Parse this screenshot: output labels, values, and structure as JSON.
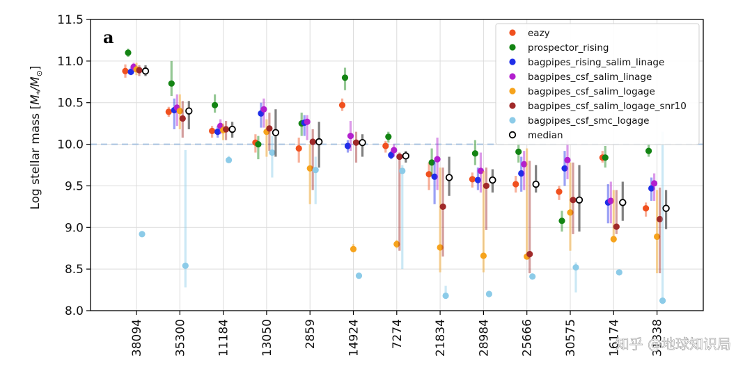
{
  "chart_data": {
    "type": "scatter",
    "panel_label": "a",
    "ylabel_prefix": "Log stellar mass [",
    "ylabel_ratio": "M",
    "ylabel_suffix": "]",
    "ylim": [
      8.0,
      11.5
    ],
    "yticks": [
      "8.0",
      "8.5",
      "9.0",
      "9.5",
      "10.0",
      "10.5",
      "11.0",
      "11.5"
    ],
    "reference_line": 10.0,
    "grid": true,
    "legend_position": "top-right",
    "categories": [
      "38094",
      "35300",
      "11184",
      "13050",
      "2859",
      "14924",
      "7274",
      "21834",
      "28984",
      "25666",
      "30575",
      "16174",
      "31338"
    ],
    "series": [
      {
        "name": "eazy",
        "color": "#f0501e",
        "values": [
          10.88,
          10.39,
          10.16,
          10.02,
          9.95,
          10.47,
          9.98,
          9.64,
          9.58,
          9.52,
          9.43,
          9.84,
          9.23
        ],
        "low": [
          10.8,
          10.33,
          10.08,
          9.9,
          9.78,
          10.4,
          9.9,
          9.45,
          9.48,
          9.42,
          9.33,
          9.78,
          9.13
        ],
        "high": [
          10.96,
          10.45,
          10.22,
          10.12,
          10.08,
          10.55,
          10.04,
          9.78,
          9.66,
          9.62,
          9.5,
          9.92,
          9.3
        ]
      },
      {
        "name": "prospector_rising",
        "color": "#138413",
        "values": [
          11.1,
          10.73,
          10.47,
          10.0,
          10.25,
          10.8,
          10.09,
          9.78,
          9.89,
          9.91,
          9.08,
          9.84,
          9.92
        ],
        "low": [
          11.05,
          10.58,
          10.38,
          9.82,
          10.1,
          10.65,
          10.02,
          9.62,
          9.75,
          9.78,
          8.95,
          9.72,
          9.85
        ],
        "high": [
          11.15,
          11.0,
          10.6,
          10.1,
          10.38,
          10.92,
          10.15,
          9.95,
          10.05,
          10.05,
          9.2,
          9.98,
          10.0
        ]
      },
      {
        "name": "bagpipes_rising_salim_linage",
        "color": "#1f2ee8",
        "values": [
          10.87,
          10.41,
          10.15,
          10.37,
          10.26,
          9.98,
          9.87,
          9.61,
          9.57,
          9.65,
          9.71,
          9.3,
          9.47
        ],
        "low": [
          10.83,
          10.18,
          10.08,
          10.2,
          10.1,
          9.9,
          9.82,
          9.28,
          9.45,
          9.43,
          9.5,
          9.05,
          9.32
        ],
        "high": [
          10.92,
          10.55,
          10.22,
          10.5,
          10.35,
          10.05,
          9.92,
          9.8,
          9.72,
          9.85,
          9.92,
          9.52,
          9.6
        ]
      },
      {
        "name": "bagpipes_csf_salim_linage",
        "color": "#b21fce",
        "values": [
          10.93,
          10.44,
          10.22,
          10.42,
          10.27,
          10.1,
          9.93,
          9.82,
          9.68,
          9.76,
          9.81,
          9.32,
          9.53
        ],
        "low": [
          10.88,
          10.22,
          10.12,
          10.2,
          10.05,
          9.92,
          9.85,
          9.45,
          9.42,
          9.45,
          9.58,
          9.05,
          9.32
        ],
        "high": [
          10.98,
          10.6,
          10.3,
          10.55,
          10.35,
          10.28,
          10.0,
          10.08,
          9.9,
          9.92,
          10.05,
          9.55,
          9.65
        ]
      },
      {
        "name": "bagpipes_csf_salim_logage",
        "color": "#f6a31c",
        "values": [
          10.9,
          10.4,
          10.17,
          10.15,
          9.71,
          8.74,
          8.8,
          8.76,
          8.66,
          8.65,
          9.18,
          8.86,
          8.89
        ],
        "low": [
          10.83,
          10.18,
          10.05,
          9.85,
          9.28,
          8.7,
          8.75,
          8.46,
          8.46,
          8.62,
          8.72,
          8.82,
          8.45
        ],
        "high": [
          10.98,
          10.6,
          10.25,
          10.3,
          10.0,
          8.8,
          8.85,
          9.72,
          9.68,
          9.95,
          9.78,
          9.45,
          9.45
        ]
      },
      {
        "name": "bagpipes_csf_salim_logage_snr10",
        "color": "#a02929",
        "values": [
          10.89,
          10.31,
          10.18,
          10.19,
          10.03,
          10.02,
          9.85,
          9.25,
          9.5,
          8.68,
          9.33,
          9.01,
          9.1
        ],
        "low": [
          10.82,
          10.08,
          10.05,
          9.92,
          9.45,
          9.78,
          8.72,
          8.65,
          8.97,
          8.45,
          8.92,
          8.92,
          8.45
        ],
        "high": [
          10.95,
          10.52,
          10.28,
          10.38,
          10.18,
          10.15,
          9.9,
          9.72,
          9.72,
          9.8,
          9.78,
          9.45,
          9.48
        ]
      },
      {
        "name": "bagpipes_csf_smc_logage",
        "color": "#8ccbe8",
        "values": [
          8.92,
          8.54,
          9.81,
          9.9,
          9.69,
          8.42,
          9.68,
          8.18,
          8.2,
          8.41,
          8.52,
          8.46,
          8.12
        ],
        "low": [
          8.92,
          8.28,
          9.78,
          9.6,
          9.28,
          8.42,
          8.5,
          8.14,
          8.17,
          8.38,
          8.22,
          8.46,
          8.08
        ],
        "high": [
          8.92,
          9.93,
          9.86,
          10.1,
          9.85,
          8.42,
          9.75,
          8.3,
          8.24,
          8.45,
          8.58,
          8.46,
          10.15
        ]
      },
      {
        "name": "median",
        "color": "#000000",
        "values": [
          10.88,
          10.4,
          10.18,
          10.14,
          10.03,
          10.02,
          9.86,
          9.6,
          9.57,
          9.52,
          9.33,
          9.3,
          9.23
        ],
        "low": [
          10.82,
          10.18,
          10.08,
          9.85,
          9.72,
          9.85,
          9.78,
          9.38,
          9.42,
          9.42,
          8.95,
          9.08,
          8.98
        ],
        "high": [
          10.95,
          10.52,
          10.27,
          10.42,
          10.27,
          10.12,
          9.92,
          9.85,
          9.7,
          9.75,
          9.75,
          9.55,
          9.45
        ]
      }
    ]
  },
  "watermark": {
    "text": "知乎 @地球知识局"
  }
}
